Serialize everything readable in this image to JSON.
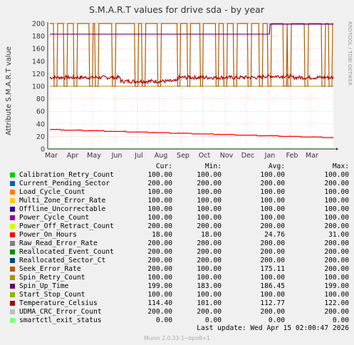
{
  "title": "S.M.A.R.T values for drive sda - by year",
  "watermark": "RRDTOOL / TOBI OETIKER",
  "legend_header": {
    "cur": "Cur:",
    "min": "Min:",
    "avg": "Avg:",
    "max": "Max:"
  },
  "last_update": "Last update:  Wed Apr 15 02:00:47 2026",
  "footer": "Munin 2.0.33-1~bpo8+1",
  "chart_data": {
    "type": "line",
    "title": "S.M.A.R.T values for drive sda - by year",
    "ylabel": "Attribute S.M.A.R.T value",
    "xlabel": "",
    "ylim": [
      0,
      200
    ],
    "yticks": [
      0,
      20,
      40,
      60,
      80,
      100,
      120,
      140,
      160,
      180,
      200
    ],
    "x_ticks": [
      "Mar",
      "Apr",
      "May",
      "Jun",
      "Jul",
      "Aug",
      "Sep",
      "Oct",
      "Nov",
      "Dec",
      "Jan",
      "Feb",
      "Mar"
    ],
    "grid": true,
    "legend_position": "bottom",
    "series": [
      {
        "name": "Calibration_Retry_Count",
        "color": "#00cc00",
        "cur": "100.00",
        "min": "100.00",
        "avg": "100.00",
        "max": "100.00"
      },
      {
        "name": "Current_Pending_Sector",
        "color": "#0066b3",
        "cur": "200.00",
        "min": "200.00",
        "avg": "200.00",
        "max": "200.00"
      },
      {
        "name": "Load_Cycle_Count",
        "color": "#ff8000",
        "cur": "100.00",
        "min": "100.00",
        "avg": "100.00",
        "max": "100.00"
      },
      {
        "name": "Multi_Zone_Error_Rate",
        "color": "#ffcc00",
        "cur": "100.00",
        "min": "100.00",
        "avg": "100.00",
        "max": "100.00"
      },
      {
        "name": "Offline_Uncorrectable",
        "color": "#330099",
        "cur": "100.00",
        "min": "100.00",
        "avg": "100.00",
        "max": "100.00"
      },
      {
        "name": "Power_Cycle_Count",
        "color": "#990099",
        "cur": "100.00",
        "min": "100.00",
        "avg": "100.00",
        "max": "100.00"
      },
      {
        "name": "Power_Off_Retract_Count",
        "color": "#ccff00",
        "cur": "200.00",
        "min": "200.00",
        "avg": "200.00",
        "max": "200.00"
      },
      {
        "name": "Power_On_Hours",
        "color": "#ff0000",
        "cur": "18.00",
        "min": "18.00",
        "avg": "24.76",
        "max": "31.00"
      },
      {
        "name": "Raw_Read_Error_Rate",
        "color": "#808080",
        "cur": "200.00",
        "min": "200.00",
        "avg": "200.00",
        "max": "200.00"
      },
      {
        "name": "Reallocated_Event_Count",
        "color": "#008f00",
        "cur": "200.00",
        "min": "200.00",
        "avg": "200.00",
        "max": "200.00"
      },
      {
        "name": "Reallocated_Sector_Ct",
        "color": "#00487d",
        "cur": "200.00",
        "min": "200.00",
        "avg": "200.00",
        "max": "200.00"
      },
      {
        "name": "Seek_Error_Rate",
        "color": "#b35a00",
        "cur": "200.00",
        "min": "100.00",
        "avg": "175.11",
        "max": "200.00"
      },
      {
        "name": "Spin_Retry_Count",
        "color": "#b38f00",
        "cur": "100.00",
        "min": "100.00",
        "avg": "100.00",
        "max": "100.00"
      },
      {
        "name": "Spin_Up_Time",
        "color": "#6b006b",
        "cur": "199.00",
        "min": "183.00",
        "avg": "186.45",
        "max": "199.00"
      },
      {
        "name": "Start_Stop_Count",
        "color": "#8fb300",
        "cur": "100.00",
        "min": "100.00",
        "avg": "100.00",
        "max": "100.00"
      },
      {
        "name": "Temperature_Celsius",
        "color": "#b30000",
        "cur": "114.40",
        "min": "101.00",
        "avg": "112.77",
        "max": "122.00"
      },
      {
        "name": "UDMA_CRC_Error_Count",
        "color": "#bebebe",
        "cur": "200.00",
        "min": "200.00",
        "avg": "200.00",
        "max": "200.00"
      },
      {
        "name": "smartctl_exit_status",
        "color": "#80ff80",
        "cur": "0.00",
        "min": "0.00",
        "avg": "0.00",
        "max": "0.00"
      }
    ]
  }
}
